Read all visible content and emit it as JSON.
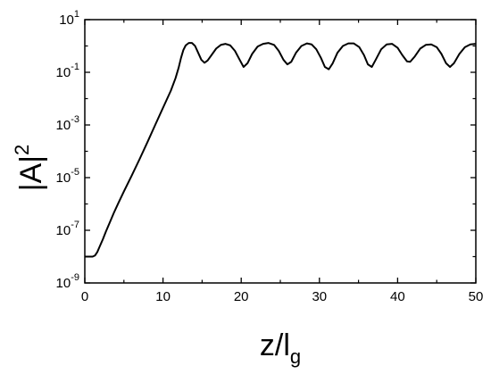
{
  "chart_data": {
    "type": "line",
    "title": "",
    "xlabel": {
      "base": "z/l",
      "subscript": "g"
    },
    "ylabel": {
      "base": "|A|",
      "superscript": "2"
    },
    "xlim": [
      0,
      50
    ],
    "ylim": [
      1e-09,
      10
    ],
    "yscale": "log",
    "grid": false,
    "legend": "none",
    "x_ticks": [
      {
        "value": 0,
        "label": "0"
      },
      {
        "value": 10,
        "label": "10"
      },
      {
        "value": 20,
        "label": "20"
      },
      {
        "value": 30,
        "label": "30"
      },
      {
        "value": 40,
        "label": "40"
      },
      {
        "value": 50,
        "label": "50"
      }
    ],
    "y_ticks": [
      {
        "value": 1e-09,
        "base": "10",
        "exp": "-9"
      },
      {
        "value": 1e-07,
        "base": "10",
        "exp": "-7"
      },
      {
        "value": 1e-05,
        "base": "10",
        "exp": "-5"
      },
      {
        "value": 0.001,
        "base": "10",
        "exp": "-3"
      },
      {
        "value": 0.1,
        "base": "10",
        "exp": "-1"
      },
      {
        "value": 10,
        "base": "10",
        "exp": "1"
      }
    ],
    "series": [
      {
        "color": "#000000",
        "points": [
          [
            0,
            1e-08
          ],
          [
            0.5,
            1e-08
          ],
          [
            1.0,
            1e-08
          ],
          [
            1.3,
            1.1e-08
          ],
          [
            1.6,
            1.5e-08
          ],
          [
            1.9,
            2.4e-08
          ],
          [
            2.3,
            4.5e-08
          ],
          [
            2.7,
            9e-08
          ],
          [
            3.2,
            2e-07
          ],
          [
            3.7,
            4.5e-07
          ],
          [
            4.3,
            1.1e-06
          ],
          [
            5.0,
            3e-06
          ],
          [
            6.0,
            1.2e-05
          ],
          [
            7.0,
            5e-05
          ],
          [
            8.0,
            0.00022
          ],
          [
            9.0,
            0.001
          ],
          [
            10.0,
            0.0045
          ],
          [
            11.0,
            0.02
          ],
          [
            11.6,
            0.06
          ],
          [
            12.0,
            0.15
          ],
          [
            12.3,
            0.35
          ],
          [
            12.6,
            0.7
          ],
          [
            12.9,
            1.05
          ],
          [
            13.3,
            1.3
          ],
          [
            13.7,
            1.3
          ],
          [
            14.1,
            1.0
          ],
          [
            14.5,
            0.55
          ],
          [
            14.9,
            0.3
          ],
          [
            15.3,
            0.23
          ],
          [
            15.7,
            0.28
          ],
          [
            16.2,
            0.45
          ],
          [
            16.8,
            0.8
          ],
          [
            17.4,
            1.1
          ],
          [
            18.0,
            1.2
          ],
          [
            18.6,
            1.05
          ],
          [
            19.2,
            0.65
          ],
          [
            19.8,
            0.3
          ],
          [
            20.3,
            0.16
          ],
          [
            20.8,
            0.22
          ],
          [
            21.4,
            0.5
          ],
          [
            22.1,
            0.95
          ],
          [
            22.8,
            1.2
          ],
          [
            23.5,
            1.3
          ],
          [
            24.2,
            1.1
          ],
          [
            24.8,
            0.65
          ],
          [
            25.4,
            0.3
          ],
          [
            25.9,
            0.2
          ],
          [
            26.4,
            0.25
          ],
          [
            27.0,
            0.55
          ],
          [
            27.7,
            1.0
          ],
          [
            28.4,
            1.25
          ],
          [
            29.0,
            1.15
          ],
          [
            29.6,
            0.75
          ],
          [
            30.2,
            0.35
          ],
          [
            30.7,
            0.16
          ],
          [
            31.2,
            0.13
          ],
          [
            31.7,
            0.22
          ],
          [
            32.3,
            0.55
          ],
          [
            33.0,
            1.0
          ],
          [
            33.7,
            1.25
          ],
          [
            34.4,
            1.25
          ],
          [
            35.1,
            0.9
          ],
          [
            35.7,
            0.45
          ],
          [
            36.2,
            0.2
          ],
          [
            36.7,
            0.16
          ],
          [
            37.2,
            0.3
          ],
          [
            37.9,
            0.75
          ],
          [
            38.6,
            1.15
          ],
          [
            39.3,
            1.2
          ],
          [
            40.0,
            0.85
          ],
          [
            40.6,
            0.45
          ],
          [
            41.2,
            0.26
          ],
          [
            41.6,
            0.25
          ],
          [
            42.2,
            0.4
          ],
          [
            42.9,
            0.8
          ],
          [
            43.6,
            1.1
          ],
          [
            44.3,
            1.15
          ],
          [
            45.0,
            0.9
          ],
          [
            45.6,
            0.5
          ],
          [
            46.2,
            0.22
          ],
          [
            46.7,
            0.16
          ],
          [
            47.2,
            0.22
          ],
          [
            47.9,
            0.5
          ],
          [
            48.6,
            0.9
          ],
          [
            49.3,
            1.15
          ],
          [
            50.0,
            1.2
          ]
        ]
      }
    ]
  }
}
